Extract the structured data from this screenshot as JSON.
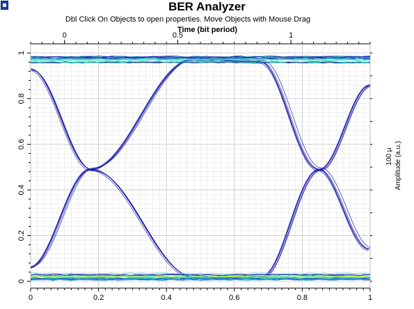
{
  "app": {
    "title": "BER Analyzer",
    "subtitle": "Dbl Click On Objects to open properties.  Move Objects with Mouse Drag"
  },
  "chart_data": {
    "type": "line",
    "top_axis_label": "Time (bit period)",
    "top_ticks": [
      "0",
      "0.5",
      "1"
    ],
    "top_range": [
      -0.15,
      1.35
    ],
    "x_ticks": [
      "0",
      "0.2",
      "0.4",
      "0.6",
      "0.8",
      "1"
    ],
    "xlim": [
      0,
      1
    ],
    "y_ticks": [
      "0",
      "0.2",
      "0.4",
      "0.6",
      "0.8",
      "1"
    ],
    "ylim": [
      -0.03,
      1.04
    ],
    "right_axis_label": "Amplitude (a.u.)",
    "right_tick": "100 μ",
    "grid": true,
    "colors": {
      "trace": "#1a1aa8",
      "level_hot": "#2ee0b0",
      "level_peak": "#d8f040"
    },
    "levels": {
      "high": 0.97,
      "low": 0.02
    },
    "series": [
      {
        "x": [
          0,
          0.18,
          0.48,
          0.68,
          0.85,
          1
        ],
        "y": [
          0.93,
          0.49,
          0.02,
          0.02,
          0.49,
          0.86
        ]
      },
      {
        "x": [
          0,
          0.18,
          0.48,
          0.68,
          0.85,
          1
        ],
        "y": [
          0.06,
          0.49,
          0.97,
          0.96,
          0.49,
          0.14
        ]
      }
    ]
  }
}
